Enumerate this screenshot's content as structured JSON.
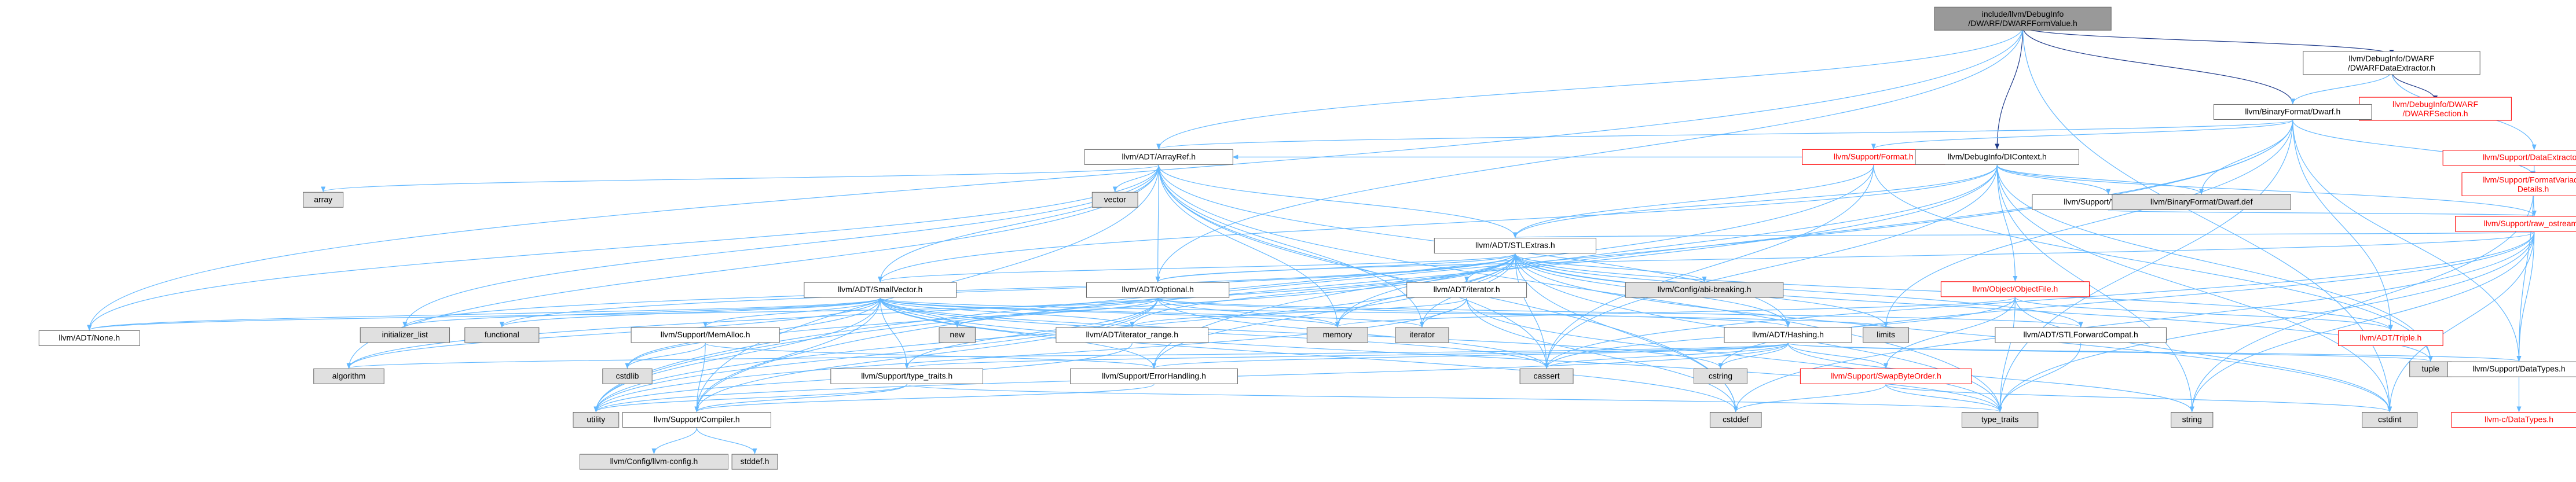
{
  "colors": {
    "root_fill": "#999999",
    "white_fill": "#ffffff",
    "grey_fill": "#e0e0e0",
    "border": "#666666",
    "red_border": "#ff0000",
    "edge": "#63b8ff"
  },
  "nodes": {
    "root": [
      "include/llvm/DebugInfo",
      "/DWARF/DWARFFormValue.h"
    ],
    "dataextractor": [
      "llvm/DebugInfo/DWARF",
      "/DWARFDataExtractor.h"
    ],
    "dwarfsection": [
      "llvm/DebugInfo/DWARF",
      "/DWARFSection.h"
    ],
    "support_dataextractor": [
      "llvm/Support/DataExtractor.h"
    ],
    "binaryformat_dwarf": [
      "llvm/BinaryFormat/Dwarf.h"
    ],
    "support_format": [
      "llvm/Support/Format.h"
    ],
    "dicontext": [
      "llvm/DebugInfo/DIContext.h"
    ],
    "formatvariadic": [
      "llvm/Support/FormatVariadic",
      "Details.h"
    ],
    "arrayref": [
      "llvm/ADT/ArrayRef.h"
    ],
    "withcolor": [
      "llvm/Support/WithColor.h"
    ],
    "dwarf_def": [
      "llvm/BinaryFormat/Dwarf.def"
    ],
    "raw_ostream": [
      "llvm/Support/raw_ostream.h"
    ],
    "array": [
      "array"
    ],
    "vector": [
      "vector"
    ],
    "stlextras": [
      "llvm/ADT/STLExtras.h"
    ],
    "configabi": [
      "llvm/Config/abi-breaking.h"
    ],
    "objectfile": [
      "llvm/Object/ObjectFile.h"
    ],
    "smallvector": [
      "llvm/ADT/SmallVector.h"
    ],
    "optional": [
      "llvm/ADT/Optional.h"
    ],
    "adt_iterator": [
      "llvm/ADT/iterator.h"
    ],
    "none": [
      "llvm/ADT/None.h"
    ],
    "initializer_list": [
      "initializer_list"
    ],
    "functional": [
      "functional"
    ],
    "memalloc": [
      "llvm/Support/MemAlloc.h"
    ],
    "new": [
      "new"
    ],
    "iterator_range": [
      "llvm/ADT/iterator_range.h"
    ],
    "memory": [
      "memory"
    ],
    "iterator": [
      "iterator"
    ],
    "limits": [
      "limits"
    ],
    "stlforwardcompat": [
      "llvm/ADT/STLForwardCompat.h"
    ],
    "hashing": [
      "llvm/ADT/Hashing.h"
    ],
    "triple": [
      "llvm/ADT/Triple.h"
    ],
    "tuple": [
      "tuple"
    ],
    "datatypes_support": [
      "llvm/Support/DataTypes.h"
    ],
    "algorithm": [
      "algorithm"
    ],
    "cstdlib": [
      "cstdlib"
    ],
    "type_traits_support": [
      "llvm/Support/type_traits.h"
    ],
    "errorhandling": [
      "llvm/Support/ErrorHandling.h"
    ],
    "cassert": [
      "cassert"
    ],
    "cstring": [
      "cstring"
    ],
    "swapbyteorder": [
      "llvm/Support/SwapByteOrder.h"
    ],
    "compiler": [
      "llvm/Support/Compiler.h"
    ],
    "utility": [
      "utility"
    ],
    "cstddef": [
      "cstddef"
    ],
    "type_traits": [
      "type_traits"
    ],
    "string": [
      "string"
    ],
    "cstdint": [
      "cstdint"
    ],
    "c_datatypes": [
      "llvm-c/DataTypes.h"
    ],
    "llvm_config": [
      "llvm/Config/llvm-config.h"
    ],
    "stddef": [
      "stddef.h"
    ]
  }
}
